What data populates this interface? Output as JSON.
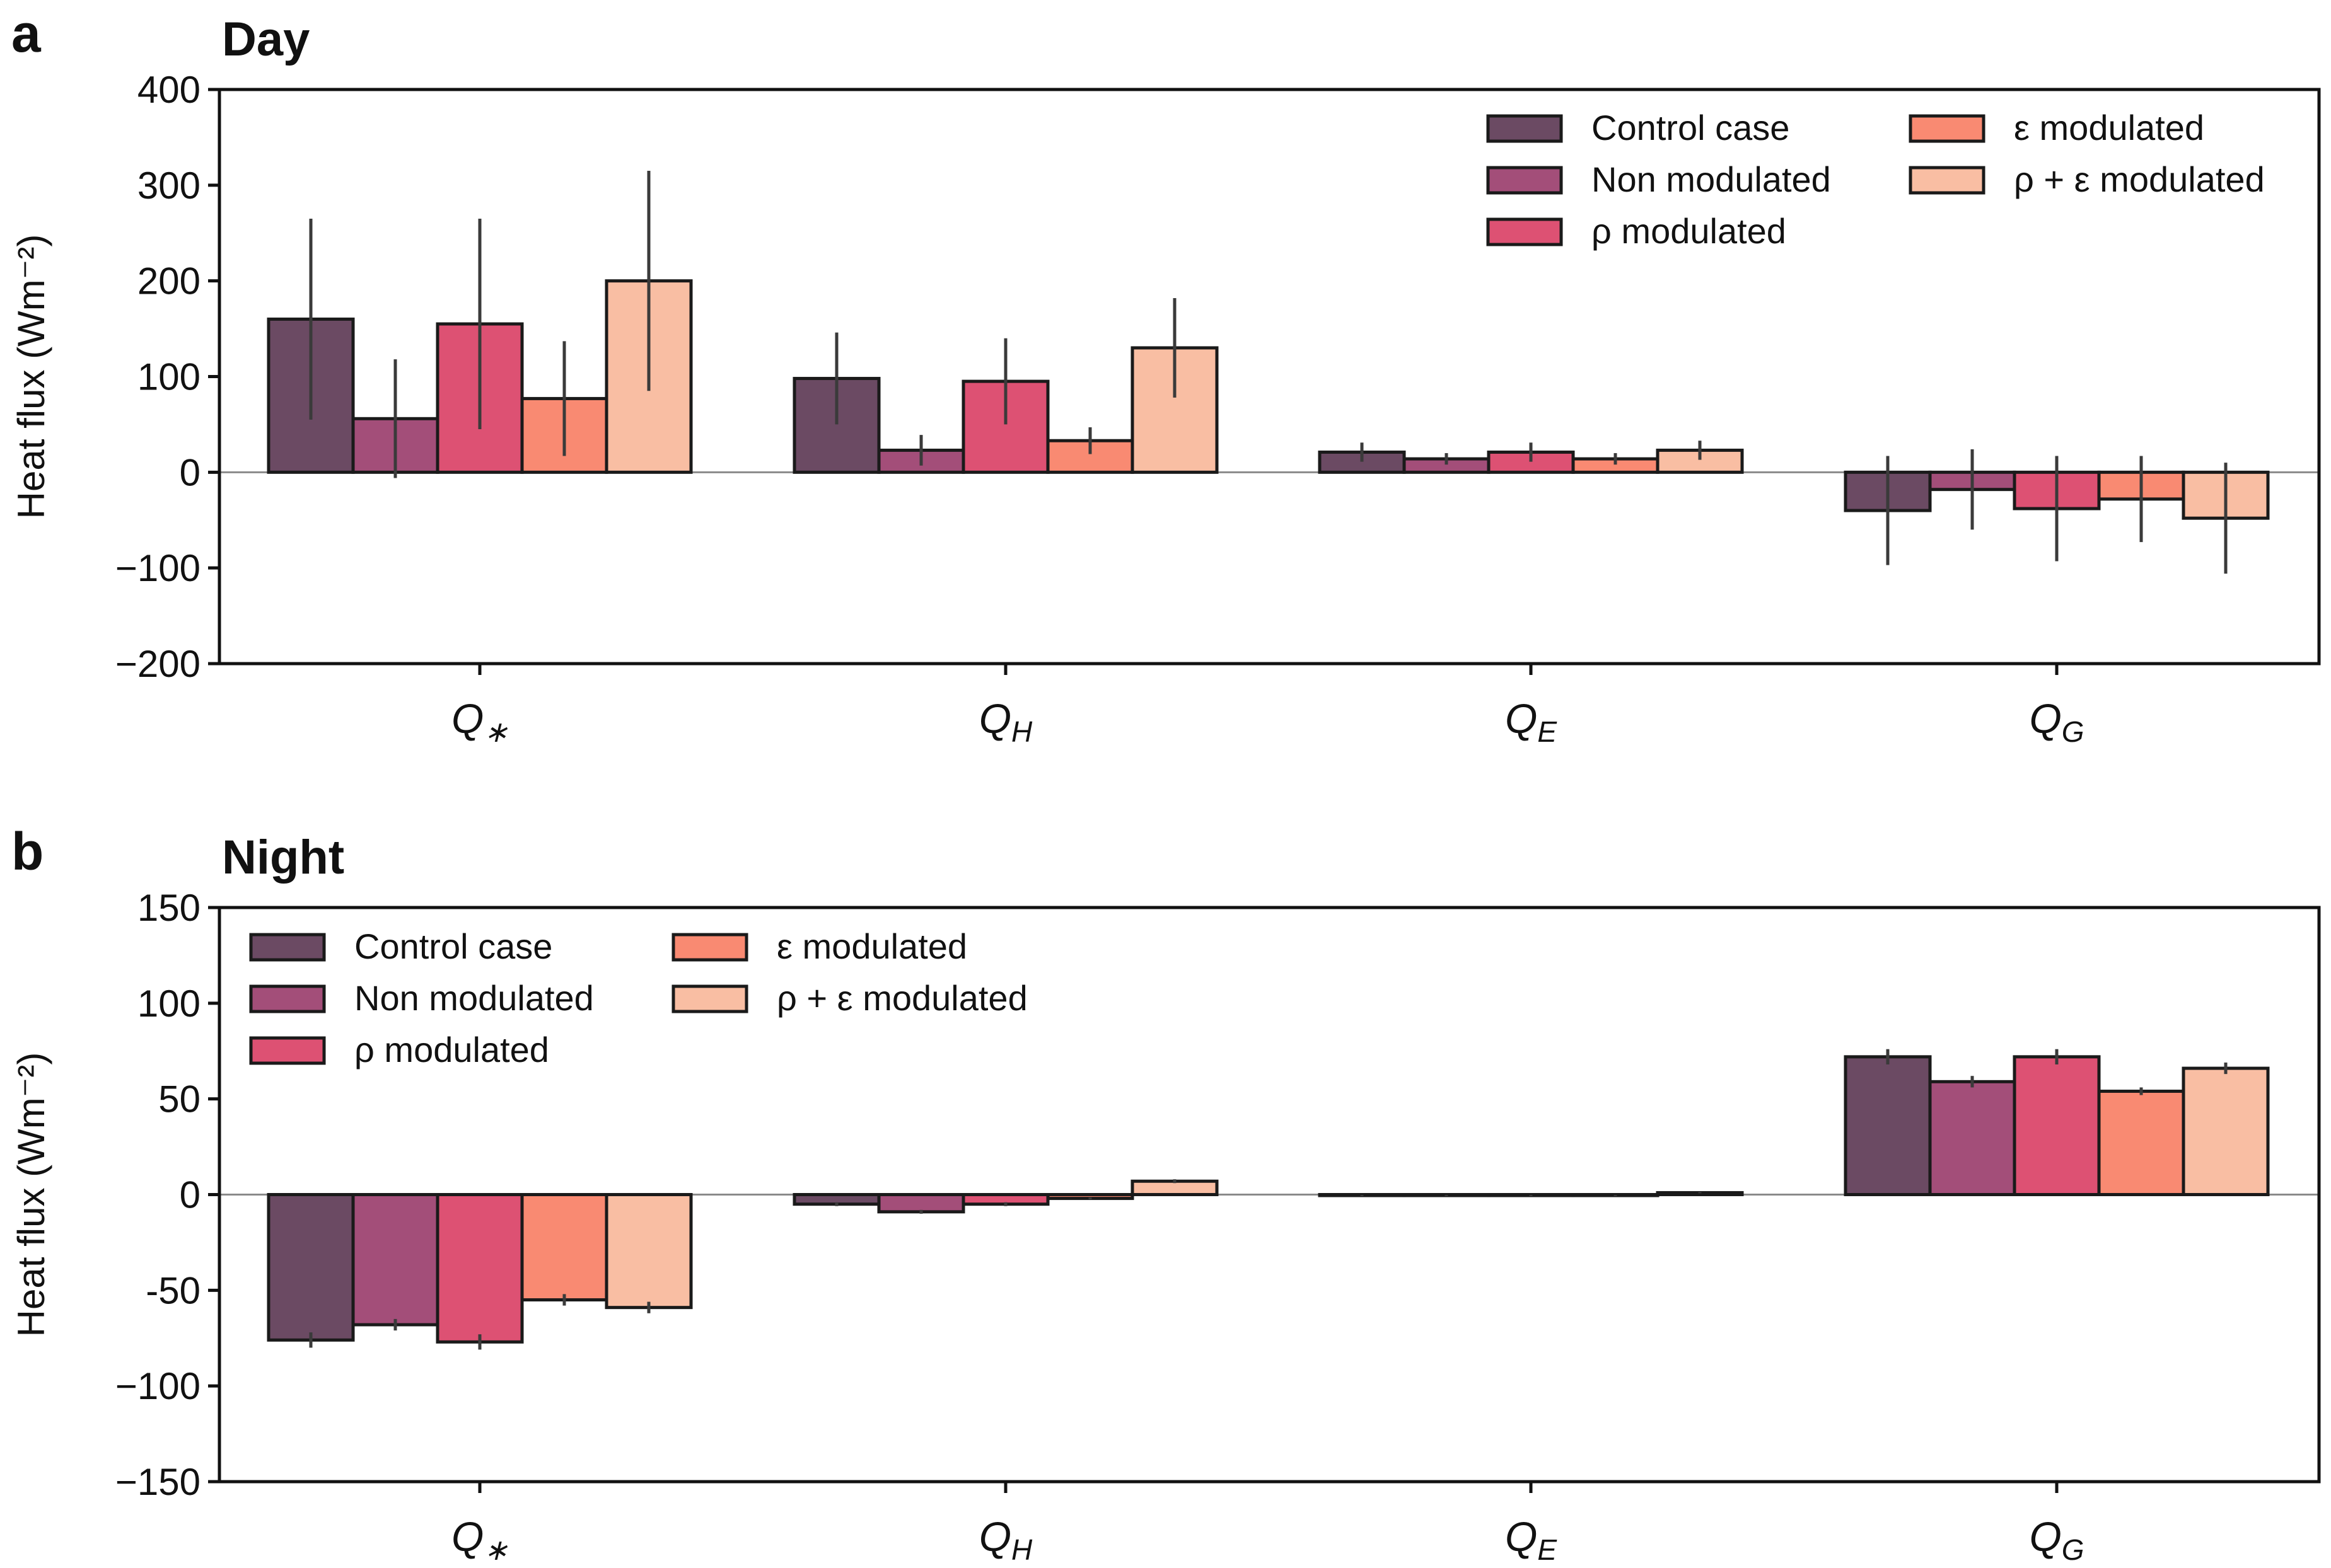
{
  "chart_data": [
    {
      "panel": "a",
      "type": "bar",
      "title": "Day",
      "ylabel": "Heat flux (Wm⁻²)",
      "xlabel": "",
      "ylim": [
        -200,
        400
      ],
      "yticks": [
        "−200",
        "−100",
        "0",
        "100",
        "200",
        "300",
        "400"
      ],
      "categories": [
        "Q∗",
        "Q_H",
        "Q_E",
        "Q_G"
      ],
      "legend_position": "top-right",
      "series": [
        {
          "name": "Control case",
          "color": "#6b4a63",
          "values": [
            160,
            98,
            21,
            -40
          ],
          "errors": [
            105,
            48,
            10,
            57
          ]
        },
        {
          "name": "Non modulated",
          "color": "#a34e79",
          "values": [
            56,
            23,
            14,
            -18
          ],
          "errors": [
            62,
            16,
            6,
            42
          ]
        },
        {
          "name": "ρ modulated",
          "color": "#dd5173",
          "values": [
            155,
            95,
            21,
            -38
          ],
          "errors": [
            110,
            45,
            10,
            55
          ]
        },
        {
          "name": "ε modulated",
          "color": "#f98a72",
          "values": [
            77,
            33,
            14,
            -28
          ],
          "errors": [
            60,
            14,
            6,
            45
          ]
        },
        {
          "name": "ρ + ε modulated",
          "color": "#f9bea3",
          "values": [
            200,
            130,
            23,
            -48
          ],
          "errors": [
            115,
            52,
            10,
            58
          ]
        }
      ]
    },
    {
      "panel": "b",
      "type": "bar",
      "title": "Night",
      "ylabel": "Heat flux (Wm⁻²)",
      "xlabel": "",
      "ylim": [
        -150,
        150
      ],
      "yticks": [
        "−150",
        "−100",
        "-50",
        "0",
        "50",
        "100",
        "150"
      ],
      "categories": [
        "Q∗",
        "Q_H",
        "Q_E",
        "Q_G"
      ],
      "legend_position": "top-left",
      "series": [
        {
          "name": "Control case",
          "color": "#6b4a63",
          "values": [
            -76,
            -5,
            -0.5,
            72
          ],
          "errors": [
            4,
            1,
            0.3,
            4
          ]
        },
        {
          "name": "Non modulated",
          "color": "#a34e79",
          "values": [
            -68,
            -9,
            -0.5,
            59
          ],
          "errors": [
            3,
            1,
            0.3,
            3
          ]
        },
        {
          "name": "ρ modulated",
          "color": "#dd5173",
          "values": [
            -77,
            -5,
            -0.5,
            72
          ],
          "errors": [
            4,
            1,
            0.3,
            4
          ]
        },
        {
          "name": "ε modulated",
          "color": "#f98a72",
          "values": [
            -55,
            -2,
            -0.5,
            54
          ],
          "errors": [
            3,
            0.5,
            0.3,
            2
          ]
        },
        {
          "name": "ρ + ε modulated",
          "color": "#f9bea3",
          "values": [
            -59,
            7,
            1,
            66
          ],
          "errors": [
            3,
            1,
            0.3,
            3
          ]
        }
      ]
    }
  ]
}
